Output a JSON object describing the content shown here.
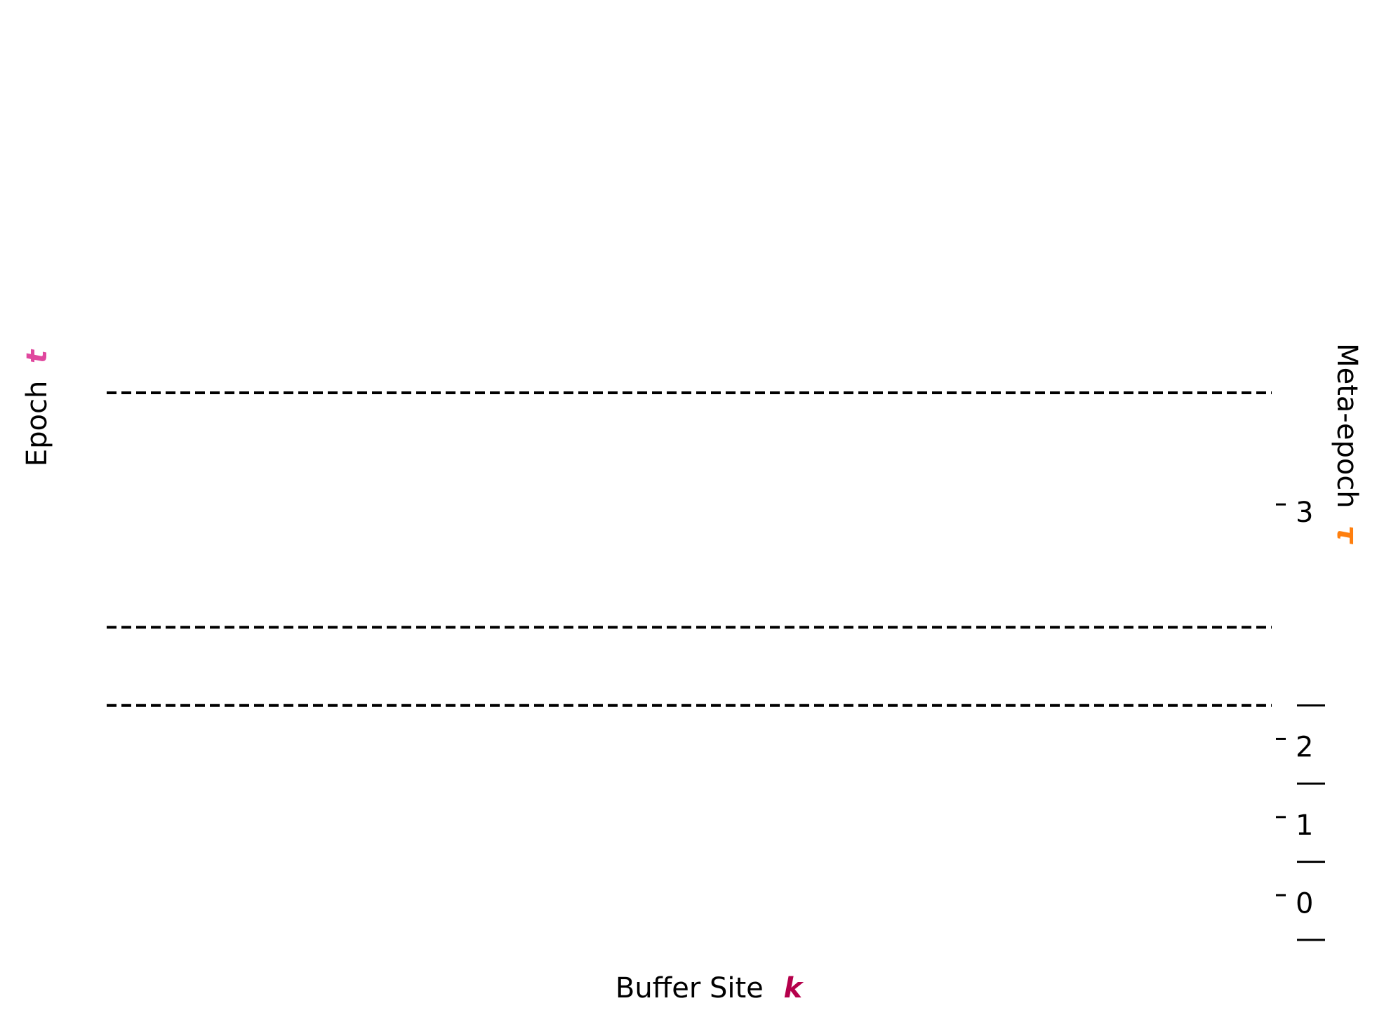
{
  "chart_data": {
    "type": "line",
    "title": "",
    "xlabel": "Buffer Site",
    "xlabel_symbol": "k",
    "ylabel": "Epoch",
    "ylabel_symbol": "t",
    "ylabel_right": "Meta-epoch",
    "ylabel_right_symbol": "τ",
    "colors": {
      "xlabel_symbol": "#b5004b",
      "ylabel_symbol": "#e0479e",
      "ylabel_right_symbol": "#ff7f0e",
      "lines": "#000000"
    },
    "grid": false,
    "ylim": [
      0,
      7
    ],
    "meta_epoch_boundaries": [
      1,
      2,
      3,
      7
    ],
    "meta_epoch_ticks": [
      {
        "label": "0",
        "value": 0.5
      },
      {
        "label": "1",
        "value": 1.5
      },
      {
        "label": "2",
        "value": 2.5
      },
      {
        "label": "3",
        "value": 5.5
      }
    ],
    "epoch_dashed_lines": [
      3,
      4,
      7
    ]
  }
}
